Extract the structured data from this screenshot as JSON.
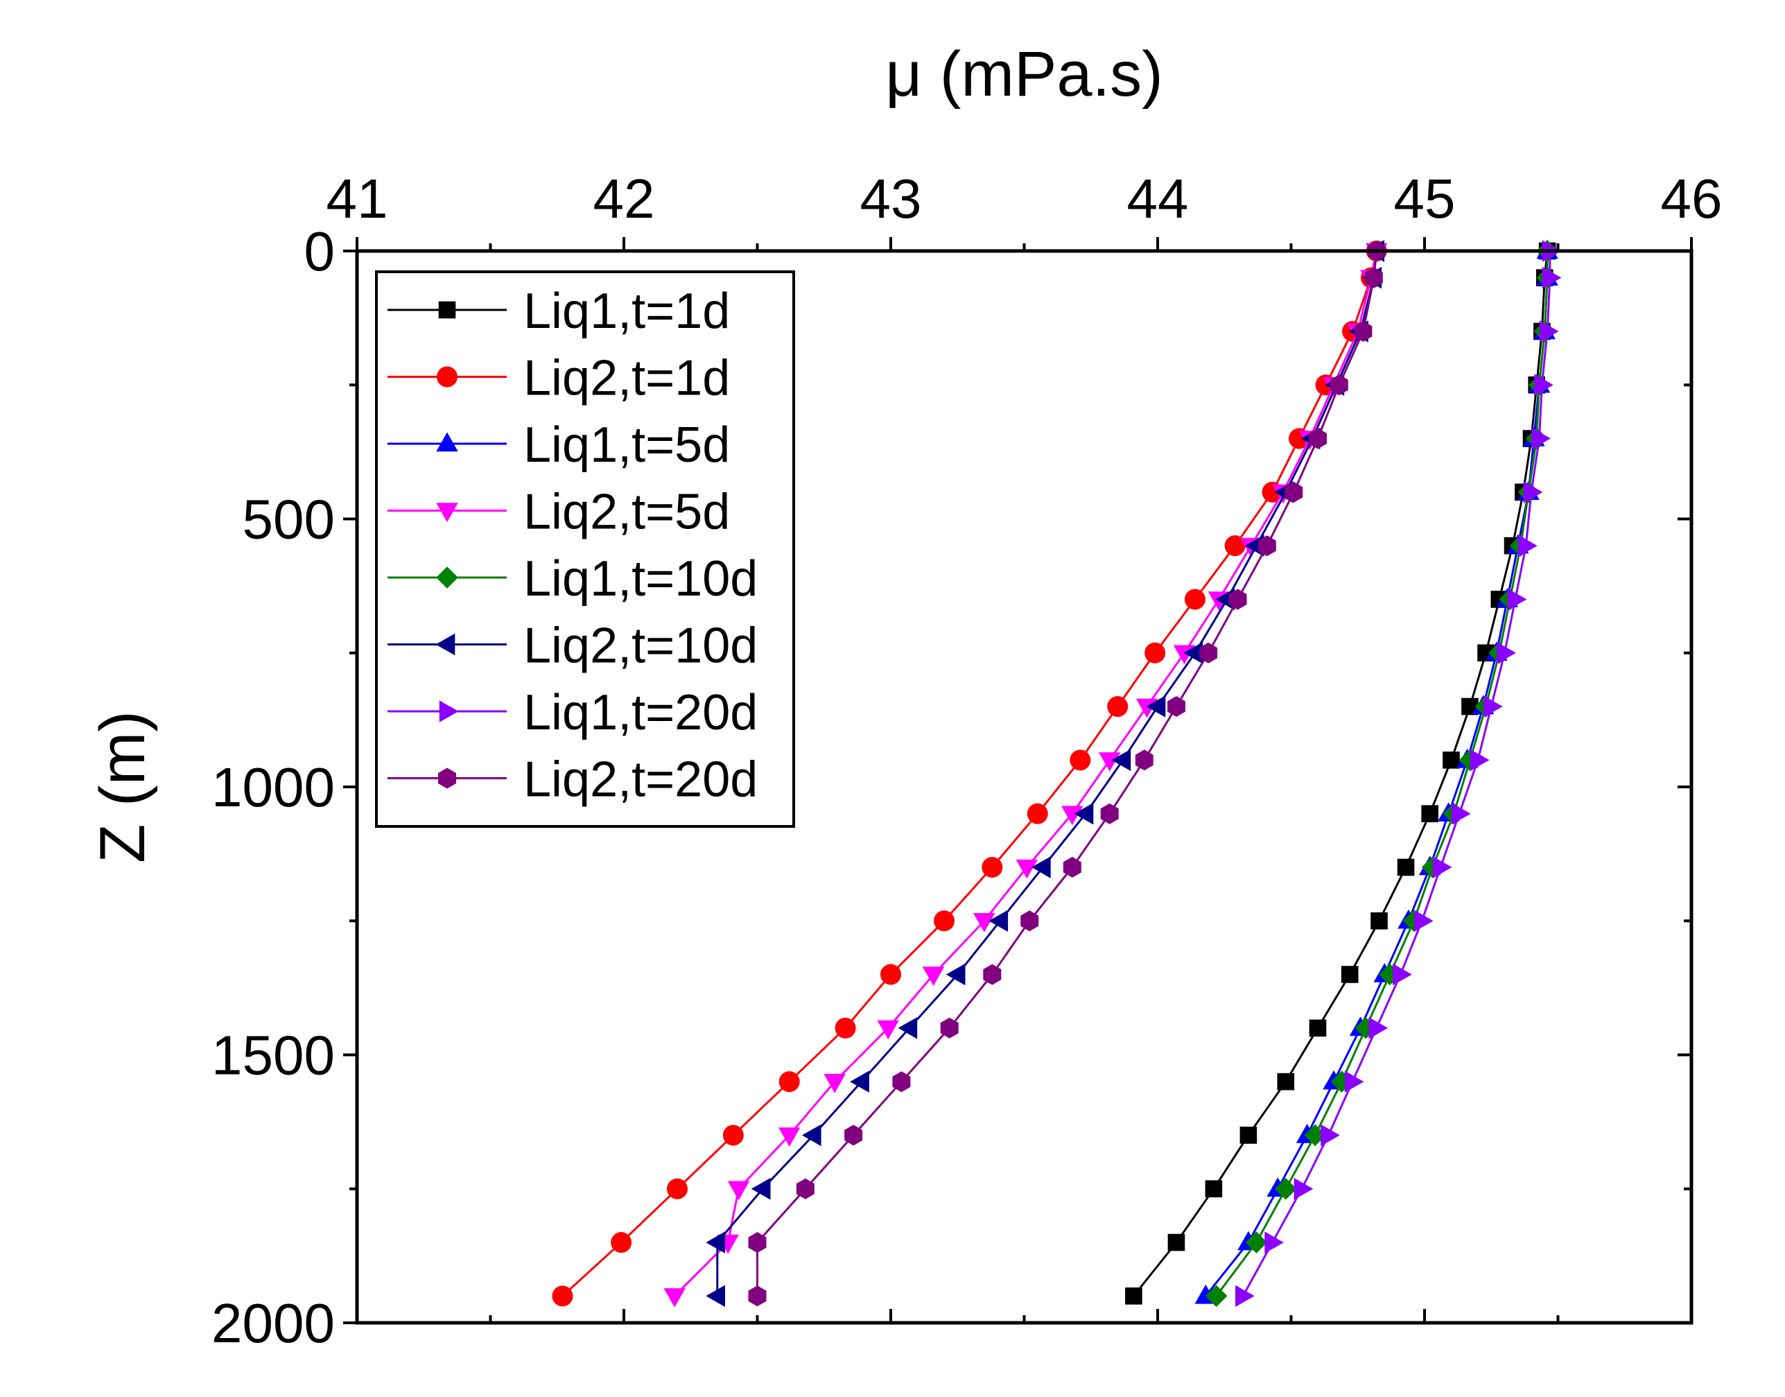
{
  "chart_data": {
    "type": "line",
    "xlabel": "μ (mPa.s)",
    "ylabel": "Z (m)",
    "x_axis_position": "top",
    "y_axis_inverted": true,
    "xlim": [
      41,
      46
    ],
    "ylim": [
      0,
      2000
    ],
    "x_ticks": [
      "41",
      "42",
      "43",
      "44",
      "45",
      "46"
    ],
    "y_ticks": [
      "0",
      "500",
      "1000",
      "1500",
      "2000"
    ],
    "grid": false,
    "legend_position": "top-left",
    "z": [
      0,
      50,
      150,
      250,
      350,
      450,
      550,
      650,
      750,
      850,
      950,
      1050,
      1150,
      1250,
      1350,
      1450,
      1550,
      1650,
      1750,
      1850,
      1950
    ],
    "series": [
      {
        "name": "Liq1,t=1d",
        "color": "#000000",
        "marker": "square",
        "values": [
          45.46,
          45.45,
          45.44,
          45.42,
          45.4,
          45.37,
          45.33,
          45.28,
          45.23,
          45.17,
          45.1,
          45.02,
          44.93,
          44.83,
          44.72,
          44.6,
          44.48,
          44.34,
          44.21,
          44.07,
          43.91
        ]
      },
      {
        "name": "Liq2,t=1d",
        "color": "#ff0000",
        "marker": "circle",
        "values": [
          44.82,
          44.8,
          44.73,
          44.63,
          44.53,
          44.43,
          44.29,
          44.14,
          43.99,
          43.85,
          43.71,
          43.55,
          43.38,
          43.2,
          43.0,
          42.83,
          42.62,
          42.41,
          42.2,
          41.99,
          41.77
        ]
      },
      {
        "name": "Liq1,t=5d",
        "color": "#0000ff",
        "marker": "triangle-up",
        "values": [
          45.46,
          45.46,
          45.45,
          45.43,
          45.41,
          45.39,
          45.35,
          45.31,
          45.27,
          45.22,
          45.16,
          45.09,
          45.02,
          44.94,
          44.85,
          44.76,
          44.66,
          44.56,
          44.45,
          44.34,
          44.18
        ]
      },
      {
        "name": "Liq2,t=5d",
        "color": "#ff00ff",
        "marker": "triangle-down",
        "values": [
          44.82,
          44.8,
          44.75,
          44.66,
          44.57,
          44.47,
          44.35,
          44.23,
          44.1,
          43.96,
          43.82,
          43.68,
          43.51,
          43.35,
          43.16,
          42.99,
          42.79,
          42.62,
          42.43,
          42.39,
          42.19
        ]
      },
      {
        "name": "Liq1,t=10d",
        "color": "#008000",
        "marker": "diamond",
        "values": [
          45.46,
          45.46,
          45.45,
          45.43,
          45.42,
          45.39,
          45.36,
          45.32,
          45.28,
          45.23,
          45.17,
          45.11,
          45.03,
          44.96,
          44.87,
          44.78,
          44.69,
          44.59,
          44.48,
          44.37,
          44.22
        ]
      },
      {
        "name": "Liq2,t=10d",
        "color": "#00008b",
        "marker": "triangle-left",
        "values": [
          44.82,
          44.81,
          44.76,
          44.67,
          44.58,
          44.48,
          44.37,
          44.26,
          44.14,
          44.0,
          43.87,
          43.73,
          43.57,
          43.41,
          43.25,
          43.07,
          42.89,
          42.71,
          42.52,
          42.35,
          42.35
        ]
      },
      {
        "name": "Liq1,t=20d",
        "color": "#8b00ff",
        "marker": "triangle-right",
        "values": [
          45.47,
          45.47,
          45.46,
          45.44,
          45.43,
          45.4,
          45.38,
          45.34,
          45.3,
          45.25,
          45.2,
          45.13,
          45.06,
          44.99,
          44.91,
          44.82,
          44.73,
          44.64,
          44.54,
          44.43,
          44.32
        ]
      },
      {
        "name": "Liq2,t=20d",
        "color": "#800080",
        "marker": "hexagon",
        "values": [
          44.82,
          44.81,
          44.77,
          44.68,
          44.6,
          44.51,
          44.41,
          44.3,
          44.19,
          44.07,
          43.95,
          43.82,
          43.68,
          43.52,
          43.38,
          43.22,
          43.04,
          42.86,
          42.68,
          42.5,
          42.5
        ]
      }
    ]
  }
}
